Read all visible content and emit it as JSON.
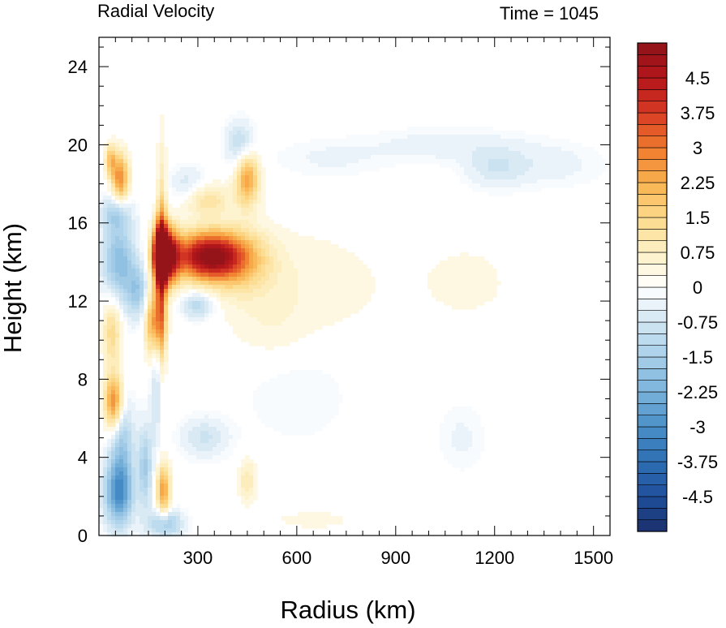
{
  "chart_data": {
    "type": "heatmap",
    "title": "Radial Velocity",
    "time_label": "Time = 1045",
    "xlabel": "Radius (km)",
    "ylabel": "Height (km)",
    "xlim": [
      0,
      1550
    ],
    "ylim": [
      0,
      25.5
    ],
    "x_ticks": [
      "300",
      "600",
      "900",
      "1200",
      "1500"
    ],
    "x_tick_values": [
      300,
      600,
      900,
      1200,
      1500
    ],
    "y_ticks": [
      "0",
      "4",
      "8",
      "12",
      "16",
      "20",
      "24"
    ],
    "y_tick_values": [
      0,
      4,
      8,
      12,
      16,
      20,
      24
    ],
    "colorbar": {
      "min": -5.25,
      "max": 5.25,
      "step": 0.25,
      "labels": [
        "4.5",
        "3.75",
        "3",
        "2.25",
        "1.5",
        "0.75",
        "0",
        "-0.75",
        "-1.5",
        "-2.25",
        "-3",
        "-3.75",
        "-4.5"
      ],
      "label_values": [
        4.5,
        3.75,
        3,
        2.25,
        1.5,
        0.75,
        0,
        -0.75,
        -1.5,
        -2.25,
        -3,
        -3.75,
        -4.5
      ],
      "palette": [
        "#1b2f6b",
        "#1f4f9c",
        "#2e6fb3",
        "#4a8fc8",
        "#7ab3db",
        "#a8cfe8",
        "#d2e6f3",
        "#ffffff",
        "#fdf1c6",
        "#fcd98a",
        "#f9b24f",
        "#ef7a2e",
        "#d83a24",
        "#b4161c",
        "#8e1418"
      ]
    },
    "features": [
      {
        "x": 205,
        "y": 14.3,
        "sx": 25,
        "sy": 1.0,
        "v": 5.2
      },
      {
        "x": 330,
        "y": 14.3,
        "sx": 75,
        "sy": 0.85,
        "v": 5.0
      },
      {
        "x": 430,
        "y": 14.0,
        "sx": 70,
        "sy": 1.2,
        "v": 1.3
      },
      {
        "x": 620,
        "y": 12.8,
        "sx": 190,
        "sy": 2.2,
        "v": 0.45
      },
      {
        "x": 1120,
        "y": 13.0,
        "sx": 110,
        "sy": 1.6,
        "v": 0.35
      },
      {
        "x": 170,
        "y": 11.0,
        "sx": 20,
        "sy": 1.3,
        "v": 3.2
      },
      {
        "x": 185,
        "y": 14.5,
        "sx": 15,
        "sy": 1.1,
        "v": 4.0
      },
      {
        "x": 190,
        "y": 13.0,
        "sx": 10,
        "sy": 4.0,
        "v": 2.5
      },
      {
        "x": 60,
        "y": 14.0,
        "sx": 35,
        "sy": 1.5,
        "v": -2.0
      },
      {
        "x": 40,
        "y": 10.5,
        "sx": 20,
        "sy": 1.3,
        "v": 1.5
      },
      {
        "x": 120,
        "y": 12.5,
        "sx": 25,
        "sy": 1.0,
        "v": -1.5
      },
      {
        "x": 45,
        "y": 6.8,
        "sx": 20,
        "sy": 1.0,
        "v": 3.0
      },
      {
        "x": 70,
        "y": 5.0,
        "sx": 25,
        "sy": 1.5,
        "v": -1.5
      },
      {
        "x": 60,
        "y": 2.2,
        "sx": 30,
        "sy": 1.2,
        "v": -3.0
      },
      {
        "x": 140,
        "y": 3.5,
        "sx": 15,
        "sy": 1.5,
        "v": -1.5
      },
      {
        "x": 195,
        "y": 2.3,
        "sx": 15,
        "sy": 1.0,
        "v": 2.5
      },
      {
        "x": 200,
        "y": 0.6,
        "sx": 35,
        "sy": 0.5,
        "v": -1.8
      },
      {
        "x": 65,
        "y": 18.3,
        "sx": 18,
        "sy": 0.9,
        "v": 2.8
      },
      {
        "x": 35,
        "y": 19.2,
        "sx": 12,
        "sy": 0.6,
        "v": 1.8
      },
      {
        "x": 50,
        "y": 16.5,
        "sx": 30,
        "sy": 0.6,
        "v": -1.2
      },
      {
        "x": 180,
        "y": 9.0,
        "sx": 15,
        "sy": 3.0,
        "v": -1.3
      },
      {
        "x": 300,
        "y": 11.8,
        "sx": 35,
        "sy": 0.5,
        "v": -1.3
      },
      {
        "x": 450,
        "y": 18.3,
        "sx": 25,
        "sy": 1.0,
        "v": 2.5
      },
      {
        "x": 430,
        "y": 20.0,
        "sx": 30,
        "sy": 0.8,
        "v": -1.2
      },
      {
        "x": 330,
        "y": 17.2,
        "sx": 50,
        "sy": 0.6,
        "v": 1.2
      },
      {
        "x": 270,
        "y": 18.0,
        "sx": 40,
        "sy": 0.6,
        "v": -0.7
      },
      {
        "x": 320,
        "y": 5.0,
        "sx": 50,
        "sy": 0.7,
        "v": -0.8
      },
      {
        "x": 450,
        "y": 2.8,
        "sx": 20,
        "sy": 0.8,
        "v": 1.0
      },
      {
        "x": 650,
        "y": 0.8,
        "sx": 80,
        "sy": 0.3,
        "v": 0.5
      },
      {
        "x": 1050,
        "y": 20.0,
        "sx": 150,
        "sy": 0.6,
        "v": -0.4
      },
      {
        "x": 1350,
        "y": 19.0,
        "sx": 120,
        "sy": 0.8,
        "v": -0.4
      },
      {
        "x": 1200,
        "y": 18.8,
        "sx": 60,
        "sy": 0.7,
        "v": -0.6
      },
      {
        "x": 700,
        "y": 19.3,
        "sx": 120,
        "sy": 0.7,
        "v": -0.3
      },
      {
        "x": 600,
        "y": 7.5,
        "sx": 120,
        "sy": 2.0,
        "v": -0.25
      },
      {
        "x": 1100,
        "y": 5.0,
        "sx": 50,
        "sy": 1.2,
        "v": -0.3
      },
      {
        "x": 520,
        "y": 10.5,
        "sx": 80,
        "sy": 1.2,
        "v": 0.3
      }
    ]
  }
}
